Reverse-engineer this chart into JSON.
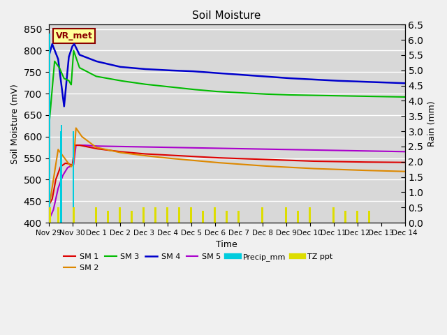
{
  "title": "Soil Moisture",
  "xlabel": "Time",
  "ylabel_left": "Soil Moisture (mV)",
  "ylabel_right": "Rain (mm)",
  "ylim_left": [
    400,
    860
  ],
  "ylim_right": [
    0.0,
    6.5
  ],
  "yticks_left": [
    400,
    450,
    500,
    550,
    600,
    650,
    700,
    750,
    800,
    850
  ],
  "yticks_right": [
    0.0,
    0.5,
    1.0,
    1.5,
    2.0,
    2.5,
    3.0,
    3.5,
    4.0,
    4.5,
    5.0,
    5.5,
    6.0,
    6.5
  ],
  "annotation_text": "VR_met",
  "annotation_color": "#8B0000",
  "annotation_bg": "#ffff99",
  "plot_bg_color": "#d8d8d8",
  "line_colors": {
    "SM1": "#dd0000",
    "SM2": "#dd8800",
    "SM3": "#00bb00",
    "SM4": "#0000cc",
    "SM5": "#aa00cc",
    "Precip": "#00ccdd",
    "TZ": "#dddd00"
  },
  "tick_labels": [
    "Nov 29",
    "Nov 30",
    "Dec 1",
    "Dec 2",
    "Dec 3",
    "Dec 4",
    "Dec 5",
    "Dec 6",
    "Dec 7",
    "Dec 8",
    "Dec 9",
    "Dec 10",
    "Dec 11",
    "Dec 12",
    "Dec 13",
    "Dec 14"
  ],
  "legend_labels": [
    "SM 1",
    "SM 2",
    "SM 3",
    "SM 4",
    "SM 5",
    "Precip_mm",
    "TZ ppt"
  ]
}
